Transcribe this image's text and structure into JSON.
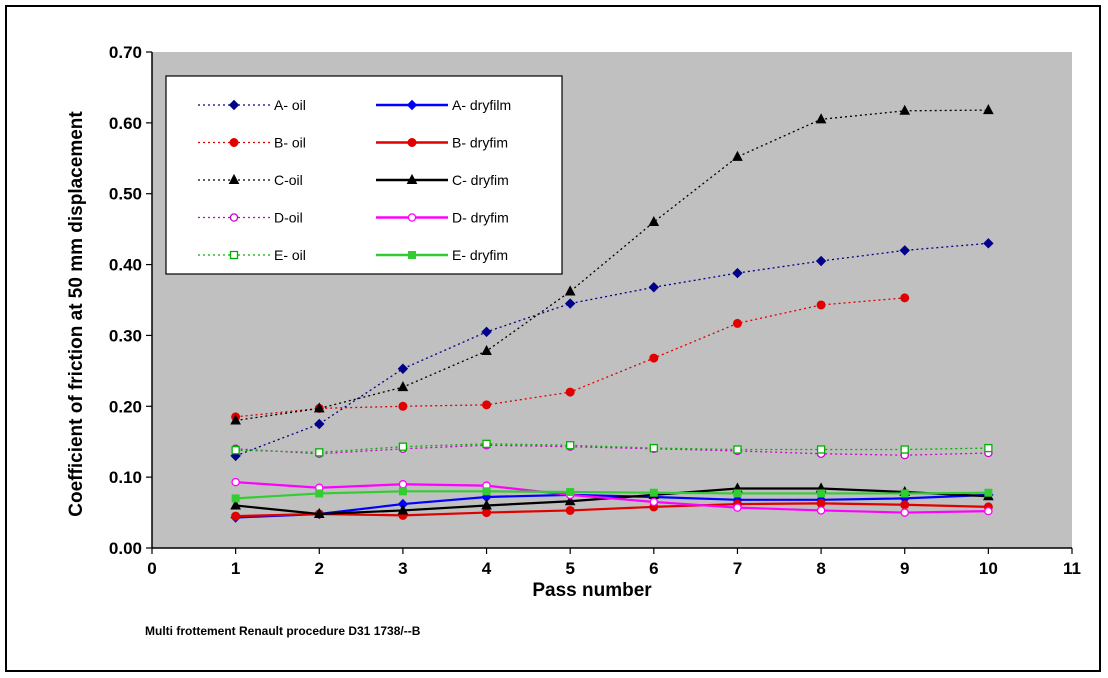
{
  "chart_data": {
    "type": "line",
    "xlabel": "Pass number",
    "ylabel": "Coefficient of friction at 50 mm displacement",
    "xlim": [
      0,
      11
    ],
    "ylim": [
      0,
      0.7
    ],
    "x_ticks": [
      "0",
      "1",
      "2",
      "3",
      "4",
      "5",
      "6",
      "7",
      "8",
      "9",
      "10",
      "11"
    ],
    "y_ticks": [
      "0.00",
      "0.10",
      "0.20",
      "0.30",
      "0.40",
      "0.50",
      "0.60",
      "0.70"
    ],
    "grid": false,
    "legend_position": "top-left",
    "plot_background": "#c0c0c0",
    "series": [
      {
        "name": "A- oil",
        "color": "#00008b",
        "style": "dotted",
        "marker": "diamond",
        "x": [
          1,
          2,
          3,
          4,
          5,
          6,
          7,
          8,
          9,
          10
        ],
        "y": [
          0.13,
          0.175,
          0.253,
          0.305,
          0.345,
          0.368,
          0.388,
          0.405,
          0.42,
          0.43
        ]
      },
      {
        "name": "B- oil",
        "color": "#e00000",
        "style": "dotted",
        "marker": "circle",
        "x": [
          1,
          2,
          3,
          4,
          5,
          6,
          7,
          8,
          9
        ],
        "y": [
          0.185,
          0.197,
          0.2,
          0.202,
          0.22,
          0.268,
          0.317,
          0.343,
          0.353
        ]
      },
      {
        "name": "C-oil",
        "color": "#000000",
        "style": "dotted",
        "marker": "triangle",
        "x": [
          1,
          2,
          3,
          4,
          5,
          6,
          7,
          8,
          9,
          10
        ],
        "y": [
          0.18,
          0.197,
          0.227,
          0.278,
          0.362,
          0.46,
          0.552,
          0.605,
          0.617,
          0.618
        ]
      },
      {
        "name": "D-oil",
        "color": "#cc00cc",
        "style": "dotted",
        "marker": "circle-open",
        "x": [
          1,
          2,
          3,
          4,
          5,
          6,
          7,
          8,
          9,
          10
        ],
        "y": [
          0.14,
          0.133,
          0.14,
          0.145,
          0.143,
          0.14,
          0.137,
          0.133,
          0.131,
          0.134
        ]
      },
      {
        "name": "E- oil",
        "color": "#00b000",
        "style": "dotted",
        "marker": "square-open",
        "x": [
          1,
          2,
          3,
          4,
          5,
          6,
          7,
          8,
          9,
          10
        ],
        "y": [
          0.138,
          0.135,
          0.143,
          0.147,
          0.145,
          0.141,
          0.139,
          0.139,
          0.139,
          0.141
        ]
      },
      {
        "name": "A- dryfilm",
        "color": "#0000ff",
        "style": "solid",
        "marker": "diamond",
        "x": [
          1,
          2,
          3,
          4,
          5,
          6,
          7,
          8,
          9,
          10
        ],
        "y": [
          0.043,
          0.048,
          0.062,
          0.072,
          0.075,
          0.072,
          0.068,
          0.068,
          0.07,
          0.075
        ]
      },
      {
        "name": "B- dryfim",
        "color": "#e00000",
        "style": "solid",
        "marker": "circle",
        "x": [
          1,
          2,
          3,
          4,
          5,
          6,
          7,
          8,
          9,
          10
        ],
        "y": [
          0.045,
          0.048,
          0.046,
          0.05,
          0.053,
          0.058,
          0.062,
          0.063,
          0.061,
          0.058
        ]
      },
      {
        "name": "C- dryfim",
        "color": "#000000",
        "style": "solid",
        "marker": "triangle",
        "x": [
          1,
          2,
          3,
          4,
          5,
          6,
          7,
          8,
          9,
          10
        ],
        "y": [
          0.06,
          0.048,
          0.053,
          0.06,
          0.066,
          0.075,
          0.084,
          0.084,
          0.079,
          0.073
        ]
      },
      {
        "name": "D- dryfim",
        "color": "#ff00ff",
        "style": "solid",
        "marker": "circle-open",
        "x": [
          1,
          2,
          3,
          4,
          5,
          6,
          7,
          8,
          9,
          10
        ],
        "y": [
          0.093,
          0.085,
          0.09,
          0.088,
          0.075,
          0.065,
          0.057,
          0.053,
          0.05,
          0.052
        ]
      },
      {
        "name": "E- dryfim",
        "color": "#33cc33",
        "style": "solid",
        "marker": "square",
        "x": [
          1,
          2,
          3,
          4,
          5,
          6,
          7,
          8,
          9,
          10
        ],
        "y": [
          0.07,
          0.077,
          0.08,
          0.08,
          0.079,
          0.078,
          0.077,
          0.077,
          0.077,
          0.078
        ]
      }
    ]
  },
  "footnote": "Multi frottement Renault procedure D31 1738/--B"
}
